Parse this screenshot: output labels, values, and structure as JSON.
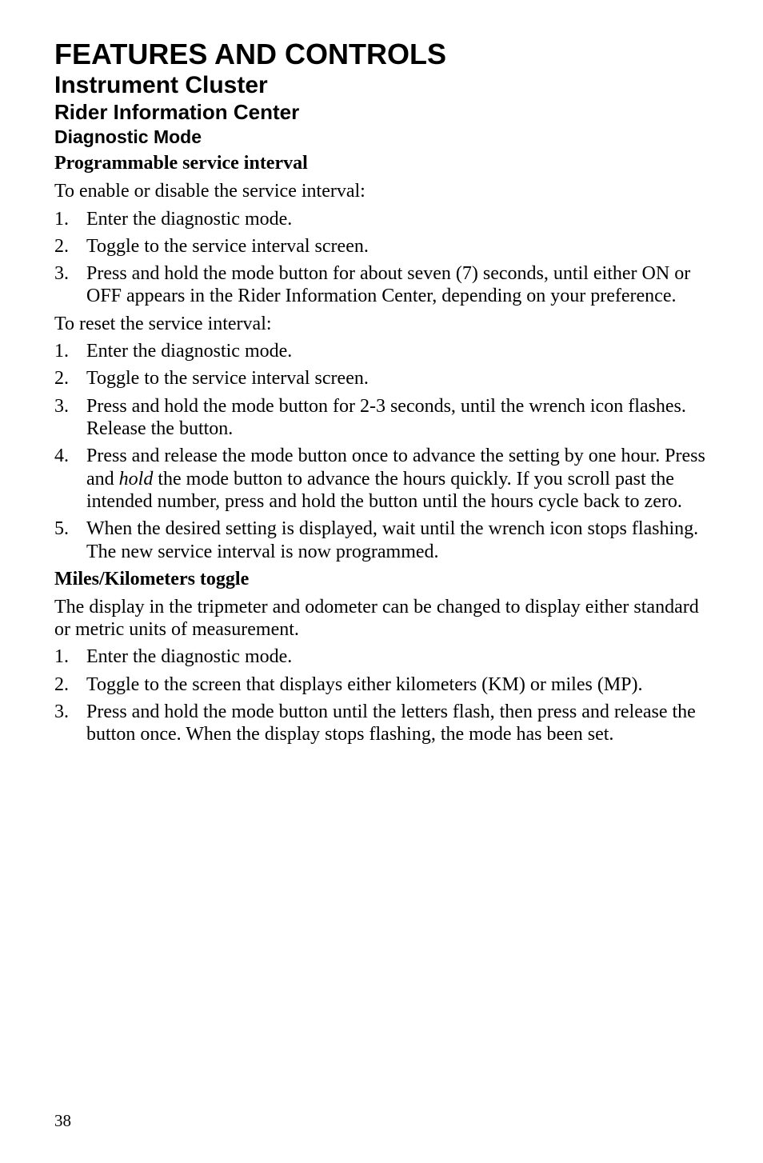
{
  "typography": {
    "body_font": "Times New Roman",
    "heading_font": "Arial",
    "text_color": "#000000",
    "background_color": "#ffffff"
  },
  "headings": {
    "h1": "FEATURES AND CONTROLS",
    "h2": "Instrument Cluster",
    "h3": "Rider Information Center",
    "h4": "Diagnostic Mode"
  },
  "section1": {
    "title": "Programmable service interval",
    "intro": "To enable or disable the service interval:",
    "list1": [
      "Enter the diagnostic mode.",
      "Toggle to the service interval screen.",
      "Press and hold the mode button for about seven (7) seconds, until either ON or OFF appears in the Rider Information Center, depending on your preference."
    ],
    "intro2": "To reset the service interval:",
    "list2": [
      {
        "parts": [
          {
            "t": "Enter the diagnostic mode."
          }
        ]
      },
      {
        "parts": [
          {
            "t": "Toggle to the service interval screen."
          }
        ]
      },
      {
        "parts": [
          {
            "t": "Press and hold the mode button for 2-3 seconds, until the wrench icon flashes. Release the button."
          }
        ]
      },
      {
        "parts": [
          {
            "t": "Press and release the mode button once to advance the setting by one hour. Press and "
          },
          {
            "t": "hold",
            "i": true
          },
          {
            "t": " the mode button to advance the hours quickly. If you scroll past the intended number, press and hold the button until the hours cycle back to zero."
          }
        ]
      },
      {
        "parts": [
          {
            "t": "When the desired setting is displayed, wait until the wrench icon stops flashing. The new service interval is now programmed."
          }
        ]
      }
    ]
  },
  "section2": {
    "title": "Miles/Kilometers toggle",
    "intro": "The display in the tripmeter and odometer can be changed to display either standard or metric units of measurement.",
    "list": [
      "Enter the diagnostic mode.",
      "Toggle to the screen that displays either kilometers (KM) or miles (MP).",
      "Press and hold the mode button until the letters flash, then press and release the button once. When the display stops flashing, the mode has been set."
    ]
  },
  "page_number": "38"
}
